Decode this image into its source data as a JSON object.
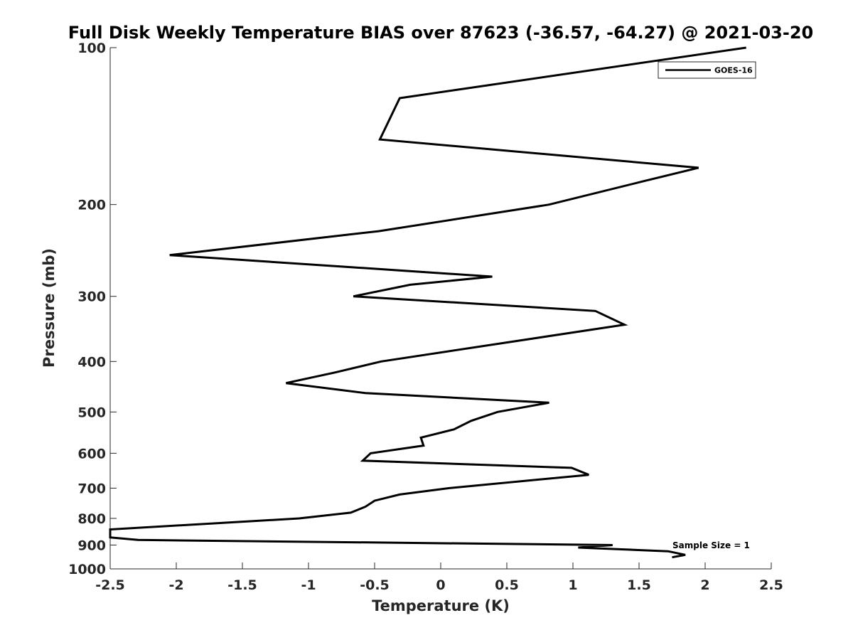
{
  "chart_data": {
    "type": "line",
    "title": "Full Disk Weekly Temperature BIAS over 87623 (-36.57, -64.27) @ 2021-03-20",
    "xlabel": "Temperature (K)",
    "ylabel": "Pressure (mb)",
    "xlim": [
      -2.5,
      2.5
    ],
    "ylim": [
      100,
      1000
    ],
    "y_scale": "log",
    "y_reversed": true,
    "x_ticks": [
      -2.5,
      -2,
      -1.5,
      -1,
      -0.5,
      0,
      0.5,
      1,
      1.5,
      2,
      2.5
    ],
    "x_tick_labels": [
      "-2.5",
      "-2",
      "-1.5",
      "-1",
      "-0.5",
      "0",
      "0.5",
      "1",
      "1.5",
      "2",
      "2.5"
    ],
    "y_ticks": [
      100,
      200,
      300,
      400,
      500,
      600,
      700,
      800,
      900,
      1000
    ],
    "y_tick_labels": [
      "100",
      "200",
      "300",
      "400",
      "500",
      "600",
      "700",
      "800",
      "900",
      "1000"
    ],
    "grid": false,
    "legend_position": "top-right",
    "annotation": "Sample Size = 1",
    "series": [
      {
        "name": "GOES-16",
        "color": "#000000",
        "points": [
          [
            2.31,
            100
          ],
          [
            -0.31,
            125
          ],
          [
            -0.46,
            150
          ],
          [
            1.95,
            170
          ],
          [
            1.55,
            180
          ],
          [
            0.82,
            200
          ],
          [
            -0.47,
            225
          ],
          [
            -2.05,
            250
          ],
          [
            0.39,
            275
          ],
          [
            -0.23,
            285
          ],
          [
            -0.66,
            300
          ],
          [
            1.17,
            320
          ],
          [
            1.39,
            340
          ],
          [
            -0.45,
            400
          ],
          [
            -0.8,
            420
          ],
          [
            -1.17,
            440
          ],
          [
            -0.57,
            460
          ],
          [
            0.82,
            480
          ],
          [
            0.43,
            500
          ],
          [
            0.23,
            520
          ],
          [
            0.1,
            540
          ],
          [
            -0.15,
            560
          ],
          [
            -0.13,
            580
          ],
          [
            -0.53,
            600
          ],
          [
            -0.59,
            620
          ],
          [
            0.99,
            640
          ],
          [
            1.12,
            660
          ],
          [
            0.06,
            700
          ],
          [
            -0.31,
            720
          ],
          [
            -0.5,
            740
          ],
          [
            -0.57,
            760
          ],
          [
            -0.68,
            780
          ],
          [
            -1.07,
            800
          ],
          [
            -2.5,
            840
          ],
          [
            -2.5,
            870
          ],
          [
            -2.29,
            880
          ],
          [
            1.3,
            900
          ],
          [
            1.04,
            910
          ],
          [
            1.72,
            925
          ],
          [
            1.85,
            940
          ],
          [
            1.75,
            950
          ]
        ]
      }
    ]
  }
}
